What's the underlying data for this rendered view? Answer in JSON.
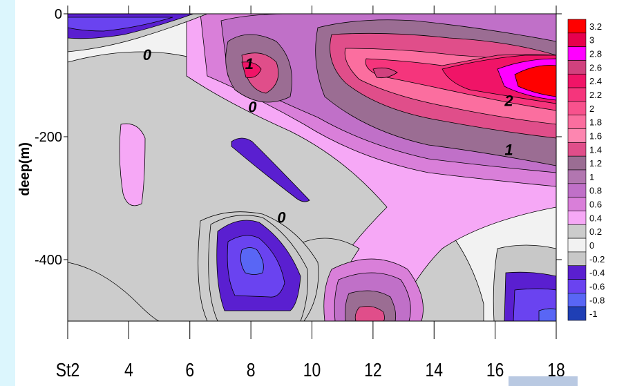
{
  "chart_data": {
    "type": "heatmap",
    "title": "",
    "xlabel": "",
    "ylabel": "deep(m)",
    "x_ticks": [
      "St2",
      "4",
      "6",
      "8",
      "10",
      "12",
      "14",
      "16",
      "18"
    ],
    "y_ticks": [
      "0",
      "-200",
      "-400"
    ],
    "xlim": [
      2,
      18
    ],
    "ylim": [
      -500,
      0
    ],
    "colorbar": {
      "levels": [
        "3.2",
        "3",
        "2.8",
        "2.6",
        "2.4",
        "2.2",
        "2",
        "1.8",
        "1.6",
        "1.4",
        "1.2",
        "1",
        "0.8",
        "0.6",
        "0.4",
        "0.2",
        "0",
        "-0.2",
        "-0.4",
        "-0.6",
        "-0.8",
        "-1"
      ],
      "colors": [
        "#ff0000",
        "#e6004d",
        "#ff00ff",
        "#d1417e",
        "#f01467",
        "#f5357c",
        "#f8528d",
        "#fb6e9f",
        "#fd86b0",
        "#e04e8a",
        "#9b6d93",
        "#b276b0",
        "#c070c8",
        "#d97fd9",
        "#f6a8f6",
        "#cccccc",
        "#f2f2f2",
        "#c8c8c8",
        "#5a1fd0",
        "#6a43f0",
        "#5966f5",
        "#1f3fb5"
      ]
    },
    "contour_labels": [
      {
        "text": "0",
        "x": 4.6,
        "y": -75
      },
      {
        "text": "1",
        "x": 7.95,
        "y": -90
      },
      {
        "text": "0",
        "x": 8.05,
        "y": -160
      },
      {
        "text": "0",
        "x": 9.0,
        "y": -340
      },
      {
        "text": "2",
        "x": 16.45,
        "y": -150
      },
      {
        "text": "1",
        "x": 16.45,
        "y": -230
      }
    ],
    "grid": false,
    "legend": "right"
  }
}
